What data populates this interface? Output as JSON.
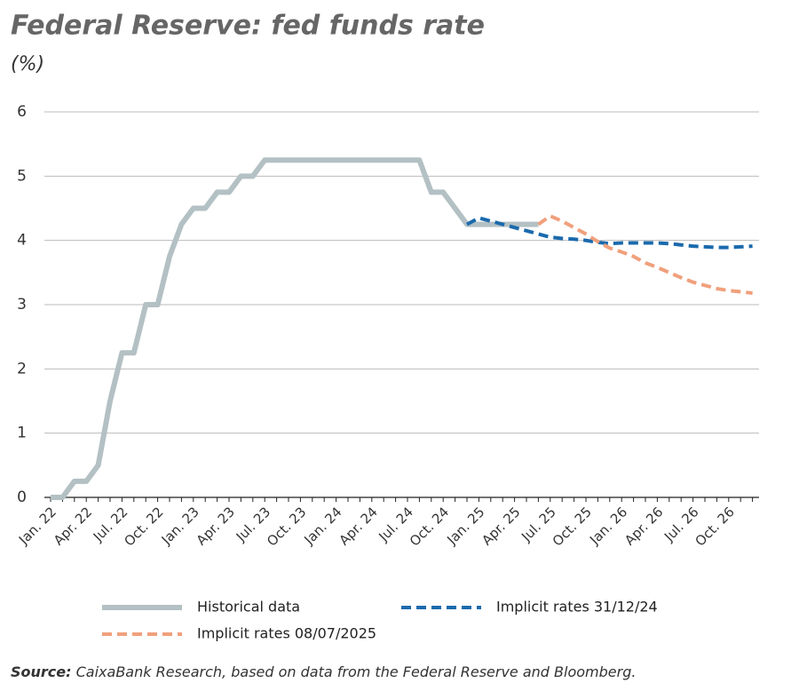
{
  "chart_data": {
    "type": "line",
    "title": "Federal Reserve: fed funds rate",
    "subtitle": "(%)",
    "source_label": "Source:",
    "source": "CaixaBank Research, based on data from the Federal Reserve and Bloomberg.",
    "categories": [
      "Jan. 22",
      null,
      null,
      "Apr. 22",
      null,
      null,
      "Jul. 22",
      null,
      null,
      "Oct. 22",
      null,
      null,
      "Jan. 23",
      null,
      null,
      "Apr. 23",
      null,
      null,
      "Jul. 23",
      null,
      null,
      "Oct. 23",
      null,
      null,
      "Jan. 24",
      null,
      null,
      "Apr. 24",
      null,
      null,
      "Jul. 24",
      null,
      null,
      "Oct. 24",
      null,
      null,
      "Jan. 25",
      null,
      null,
      "Apr. 25",
      null,
      null,
      "Jul. 25",
      null,
      null,
      "Oct. 25",
      null,
      null,
      "Jan. 26",
      null,
      null,
      "Apr. 26",
      null,
      null,
      "Jul. 26",
      null,
      null,
      "Oct. 26",
      null,
      null
    ],
    "series": [
      {
        "name": "Historical data",
        "color": "#b3c0c4",
        "dash": false,
        "values": [
          0,
          0,
          0.25,
          0.25,
          0.5,
          1.5,
          2.25,
          2.25,
          3,
          3,
          3.75,
          4.25,
          4.5,
          4.5,
          4.75,
          4.75,
          5,
          5,
          5.25,
          5.25,
          5.25,
          5.25,
          5.25,
          5.25,
          5.25,
          5.25,
          5.25,
          5.25,
          5.25,
          5.25,
          5.25,
          5.25,
          4.75,
          4.75,
          4.5,
          4.25,
          4.25,
          4.25,
          4.25,
          4.25,
          4.25,
          4.25,
          null,
          null,
          null,
          null,
          null,
          null,
          null,
          null,
          null,
          null,
          null,
          null,
          null,
          null,
          null,
          null,
          null,
          null
        ]
      },
      {
        "name": "Implicit rates 31/12/24",
        "color": "#1b6aad",
        "dash": true,
        "values": [
          null,
          null,
          null,
          null,
          null,
          null,
          null,
          null,
          null,
          null,
          null,
          null,
          null,
          null,
          null,
          null,
          null,
          null,
          null,
          null,
          null,
          null,
          null,
          null,
          null,
          null,
          null,
          null,
          null,
          null,
          null,
          null,
          null,
          null,
          null,
          4.25,
          4.35,
          4.3,
          4.25,
          4.2,
          4.15,
          4.1,
          4.05,
          4.03,
          4.02,
          4.0,
          3.97,
          3.95,
          3.96,
          3.96,
          3.96,
          3.96,
          3.95,
          3.93,
          3.91,
          3.9,
          3.89,
          3.89,
          3.9,
          3.91
        ]
      },
      {
        "name": "Implicit rates 08/07/2025",
        "color": "#f0a07c",
        "dash": true,
        "values": [
          null,
          null,
          null,
          null,
          null,
          null,
          null,
          null,
          null,
          null,
          null,
          null,
          null,
          null,
          null,
          null,
          null,
          null,
          null,
          null,
          null,
          null,
          null,
          null,
          null,
          null,
          null,
          null,
          null,
          null,
          null,
          null,
          null,
          null,
          null,
          null,
          null,
          null,
          null,
          null,
          null,
          4.25,
          4.38,
          4.3,
          4.2,
          4.1,
          3.98,
          3.88,
          3.82,
          3.75,
          3.65,
          3.58,
          3.5,
          3.42,
          3.35,
          3.3,
          3.25,
          3.22,
          3.2,
          3.18
        ]
      }
    ],
    "ylim": [
      0,
      6
    ],
    "yticks": [
      0,
      1,
      2,
      3,
      4,
      5,
      6
    ],
    "grid": true
  }
}
